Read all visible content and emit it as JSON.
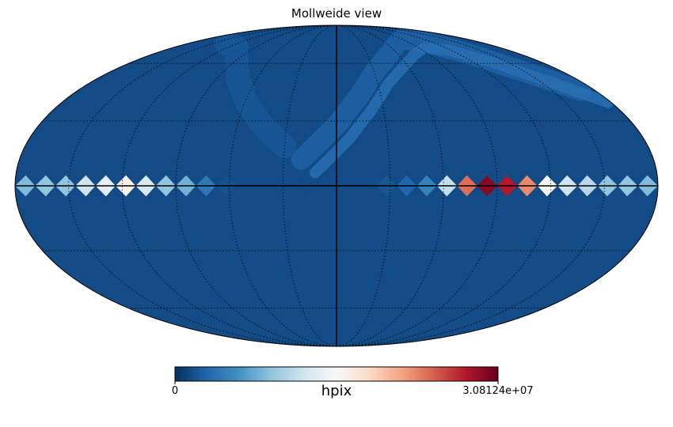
{
  "chart_data": {
    "type": "heatmap",
    "title": "Mollweide view",
    "projection": "mollweide",
    "graticule": true,
    "colormap": "RdBu_r",
    "colorbar": {
      "label": "hpix",
      "min_label": "0",
      "max_label": "3.08124e+07",
      "min": 0,
      "max": 30812400
    },
    "equator_band": {
      "lon_start": 180,
      "lon_step": -11.25,
      "normalized_values": [
        0.28,
        0.3,
        0.3,
        0.4,
        0.45,
        0.52,
        0.42,
        0.3,
        0.26,
        0.14,
        0.06,
        0.05,
        0.05,
        0.05,
        0.05,
        0.05,
        0.05,
        0.05,
        0.07,
        0.1,
        0.16,
        0.38,
        0.78,
        0.96,
        0.9,
        0.74,
        0.5,
        0.4,
        0.36,
        0.3,
        0.3,
        0.28
      ]
    },
    "background_value": 0.05
  }
}
